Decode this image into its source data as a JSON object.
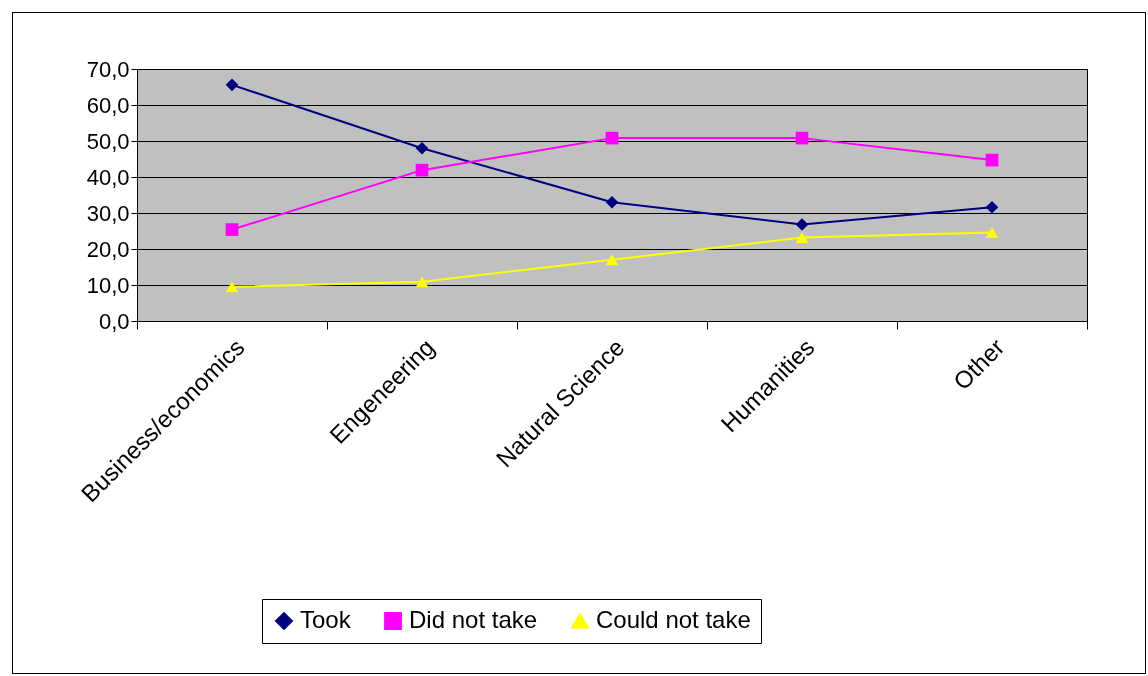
{
  "chart_data": {
    "type": "line",
    "categories": [
      "Business/economics",
      "Engeneering",
      "Natural Science",
      "Humanities",
      "Other"
    ],
    "series": [
      {
        "name": "Took",
        "color": "#000080",
        "marker": "diamond",
        "values": [
          65.6,
          48.0,
          33.0,
          26.8,
          31.6
        ]
      },
      {
        "name": "Did not take",
        "color": "#ff00ff",
        "marker": "square",
        "values": [
          25.4,
          41.9,
          50.8,
          50.8,
          44.7
        ]
      },
      {
        "name": "Could not take",
        "color": "#ffff00",
        "marker": "triangle",
        "values": [
          9.5,
          10.9,
          17.0,
          23.2,
          24.6
        ]
      }
    ],
    "ylim": [
      0,
      70
    ],
    "yticks": [
      {
        "value": 0,
        "label": "0,0"
      },
      {
        "value": 10,
        "label": "10,0"
      },
      {
        "value": 20,
        "label": "20,0"
      },
      {
        "value": 30,
        "label": "30,0"
      },
      {
        "value": 40,
        "label": "40,0"
      },
      {
        "value": 50,
        "label": "50,0"
      },
      {
        "value": 60,
        "label": "60,0"
      },
      {
        "value": 70,
        "label": "70,0"
      }
    ],
    "grid": "y",
    "legend": "bottom",
    "line_style": "solid"
  }
}
